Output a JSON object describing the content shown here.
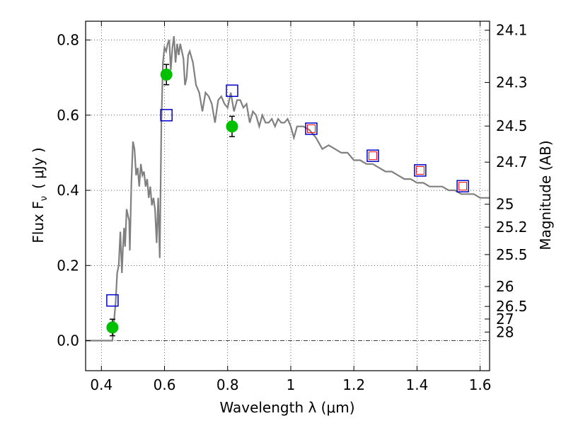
{
  "chart_data": {
    "type": "line+scatter",
    "xlabel": "Wavelength  λ (μm)",
    "ylabel": "Flux  F",
    "ylabel_sub": "ν",
    "ylabel_unit": "( μJy )",
    "y2label": "Magnitude (AB)",
    "xlim": [
      0.35,
      1.63
    ],
    "ylim": [
      -0.08,
      0.85
    ],
    "grid": true,
    "colors": {
      "model": "#808080",
      "photometry": "#00c000",
      "model_mags": "#0000cc",
      "predicted": "#ff0000",
      "errorbar": "#000000"
    },
    "x_ticks": [
      {
        "value": 0.4,
        "label": "0.4"
      },
      {
        "value": 0.6,
        "label": "0.6"
      },
      {
        "value": 0.8,
        "label": "0.8"
      },
      {
        "value": 1.0,
        "label": "1"
      },
      {
        "value": 1.2,
        "label": "1.2"
      },
      {
        "value": 1.4,
        "label": "1.4"
      },
      {
        "value": 1.6,
        "label": "1.6"
      }
    ],
    "y_ticks": [
      {
        "value": 0.0,
        "label": "0.0"
      },
      {
        "value": 0.2,
        "label": "0.2"
      },
      {
        "value": 0.4,
        "label": "0.4"
      },
      {
        "value": 0.6,
        "label": "0.6"
      },
      {
        "value": 0.8,
        "label": "0.8"
      }
    ],
    "mag_ticks": [
      {
        "flux": 0.826,
        "label": "24.1"
      },
      {
        "flux": 0.687,
        "label": "24.3"
      },
      {
        "flux": 0.571,
        "label": "24.5"
      },
      {
        "flux": 0.475,
        "label": "24.7"
      },
      {
        "flux": 0.363,
        "label": "25"
      },
      {
        "flux": 0.302,
        "label": "25.2"
      },
      {
        "flux": 0.229,
        "label": "25.5"
      },
      {
        "flux": 0.144,
        "label": "26"
      },
      {
        "flux": 0.091,
        "label": "26.5"
      },
      {
        "flux": 0.0575,
        "label": "27"
      },
      {
        "flux": 0.0229,
        "label": "28"
      }
    ],
    "model_spectrum": {
      "x": [
        0.35,
        0.43,
        0.435,
        0.44,
        0.445,
        0.45,
        0.455,
        0.46,
        0.465,
        0.468,
        0.472,
        0.475,
        0.48,
        0.485,
        0.488,
        0.49,
        0.495,
        0.5,
        0.505,
        0.51,
        0.515,
        0.52,
        0.525,
        0.53,
        0.535,
        0.54,
        0.545,
        0.55,
        0.555,
        0.56,
        0.565,
        0.57,
        0.575,
        0.58,
        0.585,
        0.59,
        0.595,
        0.6,
        0.605,
        0.61,
        0.615,
        0.62,
        0.625,
        0.63,
        0.635,
        0.64,
        0.645,
        0.65,
        0.655,
        0.66,
        0.665,
        0.67,
        0.675,
        0.68,
        0.69,
        0.7,
        0.71,
        0.72,
        0.73,
        0.74,
        0.75,
        0.76,
        0.77,
        0.78,
        0.79,
        0.8,
        0.81,
        0.82,
        0.83,
        0.84,
        0.85,
        0.86,
        0.87,
        0.88,
        0.89,
        0.9,
        0.91,
        0.92,
        0.93,
        0.94,
        0.95,
        0.96,
        0.97,
        0.98,
        0.99,
        1.0,
        1.01,
        1.02,
        1.04,
        1.06,
        1.08,
        1.1,
        1.12,
        1.14,
        1.16,
        1.18,
        1.2,
        1.22,
        1.24,
        1.26,
        1.28,
        1.3,
        1.32,
        1.34,
        1.36,
        1.38,
        1.4,
        1.42,
        1.44,
        1.46,
        1.48,
        1.5,
        1.52,
        1.54,
        1.56,
        1.58,
        1.6,
        1.63
      ],
      "y": [
        0.0,
        0.0,
        0.0,
        0.05,
        0.1,
        0.18,
        0.2,
        0.29,
        0.18,
        0.24,
        0.3,
        0.25,
        0.35,
        0.33,
        0.32,
        0.24,
        0.42,
        0.53,
        0.51,
        0.44,
        0.46,
        0.41,
        0.47,
        0.44,
        0.45,
        0.41,
        0.43,
        0.38,
        0.41,
        0.36,
        0.38,
        0.35,
        0.26,
        0.38,
        0.22,
        0.58,
        0.74,
        0.78,
        0.77,
        0.79,
        0.8,
        0.72,
        0.78,
        0.81,
        0.74,
        0.79,
        0.76,
        0.79,
        0.77,
        0.75,
        0.68,
        0.7,
        0.76,
        0.77,
        0.74,
        0.68,
        0.66,
        0.61,
        0.66,
        0.65,
        0.63,
        0.58,
        0.64,
        0.65,
        0.63,
        0.62,
        0.66,
        0.61,
        0.64,
        0.64,
        0.62,
        0.63,
        0.58,
        0.61,
        0.6,
        0.57,
        0.6,
        0.58,
        0.58,
        0.59,
        0.57,
        0.59,
        0.58,
        0.58,
        0.59,
        0.57,
        0.54,
        0.57,
        0.57,
        0.56,
        0.54,
        0.51,
        0.52,
        0.51,
        0.5,
        0.5,
        0.48,
        0.48,
        0.47,
        0.47,
        0.46,
        0.45,
        0.45,
        0.44,
        0.43,
        0.43,
        0.42,
        0.42,
        0.41,
        0.41,
        0.41,
        0.4,
        0.4,
        0.39,
        0.39,
        0.39,
        0.38,
        0.38
      ]
    },
    "photometry": [
      {
        "x": 0.435,
        "y": 0.035,
        "err": 0.022
      },
      {
        "x": 0.606,
        "y": 0.708,
        "err": 0.027
      },
      {
        "x": 0.814,
        "y": 0.57,
        "err": 0.027
      }
    ],
    "model_mags": [
      {
        "x": 0.435,
        "y": 0.107
      },
      {
        "x": 0.606,
        "y": 0.6
      },
      {
        "x": 0.814,
        "y": 0.665
      },
      {
        "x": 1.065,
        "y": 0.564
      },
      {
        "x": 1.26,
        "y": 0.492
      },
      {
        "x": 1.41,
        "y": 0.453
      },
      {
        "x": 1.545,
        "y": 0.411
      }
    ],
    "predicted": [
      {
        "x": 1.065,
        "y": 0.564
      },
      {
        "x": 1.26,
        "y": 0.492
      },
      {
        "x": 1.41,
        "y": 0.453
      },
      {
        "x": 1.545,
        "y": 0.411
      }
    ]
  }
}
